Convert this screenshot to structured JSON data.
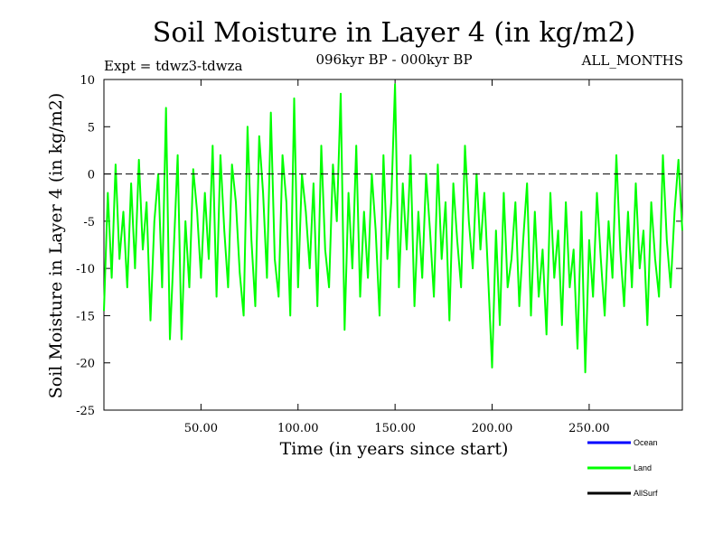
{
  "colors": {
    "ocean": "#0000ff",
    "land": "#00ff00",
    "allsurf": "#000000",
    "zero_line": "#000000"
  },
  "chart_data": {
    "type": "line",
    "title": "Soil Moisture in Layer 4 (in kg/m2)",
    "subtitle": "096kyr BP - 000kyr BP",
    "experiment": "Expt = tdwz3-tdwza",
    "months": "ALL_MONTHS",
    "xlabel": "Time (in years since start)",
    "ylabel": "Soil Moisture in Layer 4 (in kg/m2)",
    "xlim": [
      0,
      298
    ],
    "ylim": [
      -25,
      10
    ],
    "x_ticks": [
      50,
      100,
      150,
      200,
      250
    ],
    "x_tick_labels": [
      "50.00",
      "100.00",
      "150.00",
      "200.00",
      "250.00"
    ],
    "y_ticks": [
      10,
      5,
      0,
      -5,
      -10,
      -15,
      -20,
      -25
    ],
    "y_tick_labels": [
      "10",
      "5",
      "0",
      "-5",
      "-10",
      "-15",
      "-20",
      "-25"
    ],
    "zero_line": 0,
    "legend": [
      {
        "name": "Ocean",
        "color": "#0000ff"
      },
      {
        "name": "Land",
        "color": "#00ff00"
      },
      {
        "name": "AllSurf",
        "color": "#000000"
      }
    ],
    "series": [
      {
        "name": "Land",
        "color": "#00ff00",
        "x": [
          0,
          2,
          4,
          6,
          8,
          10,
          12,
          14,
          16,
          18,
          20,
          22,
          24,
          26,
          28,
          30,
          32,
          34,
          36,
          38,
          40,
          42,
          44,
          46,
          48,
          50,
          52,
          54,
          56,
          58,
          60,
          62,
          64,
          66,
          68,
          70,
          72,
          74,
          76,
          78,
          80,
          82,
          84,
          86,
          88,
          90,
          92,
          94,
          96,
          98,
          100,
          102,
          104,
          106,
          108,
          110,
          112,
          114,
          116,
          118,
          120,
          122,
          124,
          126,
          128,
          130,
          132,
          134,
          136,
          138,
          140,
          142,
          144,
          146,
          148,
          150,
          152,
          154,
          156,
          158,
          160,
          162,
          164,
          166,
          168,
          170,
          172,
          174,
          176,
          178,
          180,
          182,
          184,
          186,
          188,
          190,
          192,
          194,
          196,
          198,
          200,
          202,
          204,
          206,
          208,
          210,
          212,
          214,
          216,
          218,
          220,
          222,
          224,
          226,
          228,
          230,
          232,
          234,
          236,
          238,
          240,
          242,
          244,
          246,
          248,
          250,
          252,
          254,
          256,
          258,
          260,
          262,
          264,
          266,
          268,
          270,
          272,
          274,
          276,
          278,
          280,
          282,
          284,
          286,
          288,
          290,
          292,
          294,
          296,
          298
        ],
        "values": [
          -14.5,
          -2,
          -11,
          1,
          -9,
          -4,
          -12,
          -1,
          -10,
          1.5,
          -8,
          -3,
          -15.5,
          -5,
          0,
          -12,
          7,
          -17.5,
          -8,
          2,
          -17.5,
          -5,
          -12,
          0.5,
          -4,
          -11,
          -2,
          -9,
          3,
          -13,
          2,
          -6,
          -12,
          1,
          -3,
          -10.5,
          -15,
          5,
          -7,
          -14,
          4,
          -2,
          -11,
          6.5,
          -9,
          -13,
          2,
          -3,
          -15,
          8,
          -12,
          0,
          -4,
          -10,
          -1,
          -14,
          3,
          -8,
          -12,
          1,
          -5,
          8.5,
          -16.5,
          -2,
          -10,
          3,
          -13,
          -4,
          -11,
          0,
          -6,
          -15,
          2,
          -9,
          -3,
          9.5,
          -12,
          -1,
          -8,
          2,
          -14,
          -4,
          -11,
          0,
          -6,
          -13,
          1,
          -9,
          -3,
          -15.5,
          -1,
          -7,
          -12,
          3,
          -5,
          -10,
          0,
          -8,
          -2,
          -11,
          -20.5,
          -6,
          -16,
          -2,
          -12,
          -9,
          -3,
          -14,
          -7,
          -1,
          -15,
          -4,
          -13,
          -8,
          -17,
          -2,
          -11,
          -6,
          -16,
          -3,
          -12,
          -8,
          -18.5,
          -4,
          -21,
          -7,
          -13,
          -2,
          -9,
          -15,
          -5,
          -11,
          2,
          -8,
          -14,
          -4,
          -12,
          -1,
          -10,
          -6,
          -16,
          -3,
          -9,
          -13,
          2,
          -7,
          -12,
          -4,
          1.5,
          -6
        ]
      }
    ]
  }
}
